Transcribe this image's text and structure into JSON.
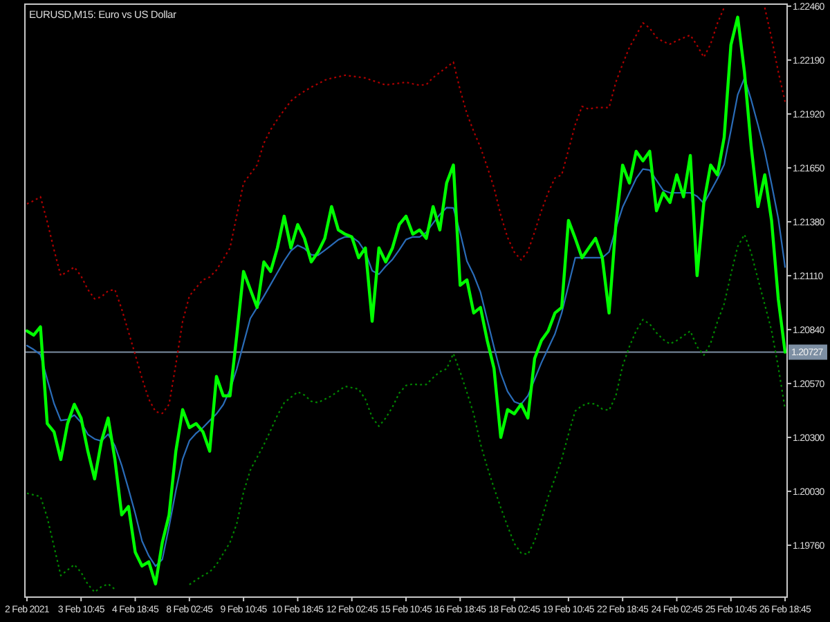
{
  "chart_data": {
    "type": "line",
    "title": "EURUSD,M15: Euro vs US Dollar",
    "categories": [
      "2 Feb 2021",
      null,
      null,
      null,
      null,
      null,
      null,
      null,
      "3 Feb 10:45",
      null,
      null,
      null,
      null,
      null,
      null,
      null,
      "4 Feb 18:45",
      null,
      null,
      null,
      null,
      null,
      null,
      null,
      "8 Feb 02:45",
      null,
      null,
      null,
      null,
      null,
      null,
      null,
      "9 Feb 10:45",
      null,
      null,
      null,
      null,
      null,
      null,
      null,
      "10 Feb 18:45",
      null,
      null,
      null,
      null,
      null,
      null,
      null,
      "12 Feb 02:45",
      null,
      null,
      null,
      null,
      null,
      null,
      null,
      "15 Feb 10:45",
      null,
      null,
      null,
      null,
      null,
      null,
      null,
      "16 Feb 18:45",
      null,
      null,
      null,
      null,
      null,
      null,
      null,
      "18 Feb 02:45",
      null,
      null,
      null,
      null,
      null,
      null,
      null,
      "19 Feb 10:45",
      null,
      null,
      null,
      null,
      null,
      null,
      null,
      "22 Feb 18:45",
      null,
      null,
      null,
      null,
      null,
      null,
      null,
      "24 Feb 02:45",
      null,
      null,
      null,
      null,
      null,
      null,
      null,
      "25 Feb 10:45",
      null,
      null,
      null,
      null,
      null,
      null,
      null,
      "26 Feb 18:45"
    ],
    "ylim": [
      1.195,
      1.2247
    ],
    "yticks": [
      {
        "value": 1.2246,
        "label": "1.22460"
      },
      {
        "value": 1.2219,
        "label": "1.22190"
      },
      {
        "value": 1.2192,
        "label": "1.21920"
      },
      {
        "value": 1.2165,
        "label": "1.21650"
      },
      {
        "value": 1.2138,
        "label": "1.21380"
      },
      {
        "value": 1.2111,
        "label": "1.21110"
      },
      {
        "value": 1.2084,
        "label": "1.20840"
      },
      {
        "value": 1.2057,
        "label": "1.20570"
      },
      {
        "value": 1.203,
        "label": "1.20300"
      },
      {
        "value": 1.2003,
        "label": "1.20030"
      },
      {
        "value": 1.1976,
        "label": "1.19760"
      }
    ],
    "grid": false,
    "marker": "none",
    "line_style": "solid",
    "series": [
      {
        "color": "#00ff00",
        "values": [
          1.20833,
          1.20812,
          1.20854,
          1.20369,
          1.20328,
          1.20189,
          1.20369,
          1.20466,
          1.20397,
          1.20231,
          1.20092,
          1.20279,
          1.20397,
          1.20189,
          1.19912,
          1.19954,
          1.19725,
          1.19656,
          1.19677,
          1.19566,
          1.19774,
          1.19912,
          1.20231,
          1.20439,
          1.20349,
          1.20369,
          1.20328,
          1.20231,
          1.20605,
          1.20508,
          1.20508,
          1.20812,
          1.21131,
          1.21041,
          1.20951,
          1.21179,
          1.21131,
          1.21249,
          1.21408,
          1.21249,
          1.21366,
          1.21297,
          1.21179,
          1.21228,
          1.21297,
          1.21456,
          1.21339,
          1.21318,
          1.21304,
          1.212,
          1.21249,
          1.20882,
          1.21249,
          1.21179,
          1.21249,
          1.21366,
          1.21408,
          1.21318,
          1.21339,
          1.21297,
          1.21456,
          1.21339,
          1.21574,
          1.21664,
          1.21062,
          1.21089,
          1.20923,
          1.20951,
          1.20785,
          1.20646,
          1.203,
          1.20439,
          1.20418,
          1.20466,
          1.20397,
          1.20695,
          1.20785,
          1.20833,
          1.20923,
          1.20951,
          1.21387,
          1.21297,
          1.212,
          1.21249,
          1.21297,
          1.212,
          1.20923,
          1.21366,
          1.21664,
          1.21574,
          1.21733,
          1.21685,
          1.21733,
          1.21435,
          1.21525,
          1.21477,
          1.21615,
          1.21505,
          1.21712,
          1.2111,
          1.21477,
          1.21664,
          1.21615,
          1.21802,
          1.22266,
          1.22405,
          1.22128,
          1.21754,
          1.21456,
          1.21615,
          1.21387,
          1.20992,
          1.20727
        ]
      },
      {
        "color": "#2a6cb8",
        "values": [
          1.2076,
          1.2074,
          1.20715,
          1.2059,
          1.2047,
          1.20385,
          1.2039,
          1.20412,
          1.20375,
          1.20315,
          1.20292,
          1.20282,
          1.20316,
          1.20258,
          1.2016,
          1.20042,
          1.19919,
          1.19781,
          1.19707,
          1.19655,
          1.19689,
          1.19854,
          1.20033,
          1.20191,
          1.20283,
          1.20321,
          1.20349,
          1.20384,
          1.20418,
          1.20464,
          1.20539,
          1.20643,
          1.2077,
          1.20896,
          1.20951,
          1.21007,
          1.21066,
          1.21125,
          1.21184,
          1.21235,
          1.21262,
          1.21246,
          1.21215,
          1.21212,
          1.21237,
          1.21263,
          1.2129,
          1.21304,
          1.21304,
          1.21279,
          1.21228,
          1.21135,
          1.21117,
          1.21157,
          1.21191,
          1.21239,
          1.21291,
          1.21304,
          1.21304,
          1.21327,
          1.21373,
          1.21417,
          1.21451,
          1.21449,
          1.21325,
          1.21183,
          1.21114,
          1.21027,
          1.20889,
          1.20752,
          1.20621,
          1.2053,
          1.20479,
          1.20466,
          1.20508,
          1.20591,
          1.20674,
          1.20746,
          1.20818,
          1.20923,
          1.21062,
          1.212,
          1.212,
          1.212,
          1.212,
          1.212,
          1.21229,
          1.21347,
          1.21453,
          1.21525,
          1.21597,
          1.21644,
          1.21639,
          1.21588,
          1.21538,
          1.21525,
          1.21525,
          1.21525,
          1.21525,
          1.21508,
          1.21472,
          1.21533,
          1.21595,
          1.21667,
          1.21838,
          1.22016,
          1.221,
          1.2199,
          1.21864,
          1.21732,
          1.21569,
          1.21396,
          1.21153
        ]
      },
      {
        "color": "#b00000",
        "line_style": "dotted",
        "values": [
          1.2147,
          1.21485,
          1.21505,
          1.2138,
          1.2124,
          1.2111,
          1.21131,
          1.21153,
          1.21108,
          1.21041,
          1.20994,
          1.21004,
          1.21034,
          1.2104,
          1.20943,
          1.20829,
          1.20714,
          1.20596,
          1.20492,
          1.20429,
          1.2042,
          1.20466,
          1.20665,
          1.20881,
          1.21008,
          1.2105,
          1.21089,
          1.21103,
          1.21138,
          1.21193,
          1.21249,
          1.21412,
          1.21574,
          1.21619,
          1.21664,
          1.21774,
          1.21841,
          1.21893,
          1.2194,
          1.21985,
          1.22012,
          1.22034,
          1.22054,
          1.22071,
          1.22089,
          1.22099,
          1.22106,
          1.22114,
          1.22109,
          1.22105,
          1.221,
          1.22088,
          1.22077,
          1.22065,
          1.2207,
          1.22074,
          1.22079,
          1.22071,
          1.22064,
          1.22067,
          1.22102,
          1.22128,
          1.22154,
          1.2218,
          1.2204,
          1.21921,
          1.21833,
          1.21753,
          1.21655,
          1.21551,
          1.21413,
          1.21302,
          1.21228,
          1.21189,
          1.21231,
          1.21329,
          1.21435,
          1.21526,
          1.21599,
          1.21615,
          1.21739,
          1.21866,
          1.21958,
          1.21944,
          1.21952,
          1.21952,
          1.21952,
          1.22079,
          1.2217,
          1.22253,
          1.22314,
          1.22376,
          1.2235,
          1.22303,
          1.22282,
          1.2227,
          1.22287,
          1.22301,
          1.22315,
          1.22263,
          1.22204,
          1.2227,
          1.22374,
          1.22453,
          null,
          null,
          null,
          null,
          null,
          1.22453,
          1.223,
          1.2213,
          1.21981
        ]
      },
      {
        "color": "#008a00",
        "line_style": "dotted",
        "values": [
          1.2002,
          1.20012,
          1.20004,
          1.19899,
          1.19754,
          1.19608,
          1.19636,
          1.19663,
          1.19624,
          1.19564,
          1.19525,
          1.19552,
          1.19566,
          1.19539,
          null,
          null,
          null,
          null,
          null,
          null,
          null,
          null,
          null,
          null,
          1.19563,
          1.19586,
          1.19608,
          1.19626,
          1.19663,
          1.19718,
          1.19774,
          1.19868,
          1.20026,
          1.20136,
          1.202,
          1.20263,
          1.20335,
          1.2041,
          1.20473,
          1.20501,
          1.20528,
          1.20512,
          1.20481,
          1.20474,
          1.20491,
          1.20508,
          1.20532,
          1.20556,
          1.20549,
          1.20542,
          1.20491,
          1.204,
          1.20356,
          1.20397,
          1.20452,
          1.20522,
          1.2056,
          1.20567,
          1.20564,
          1.20565,
          1.20599,
          1.20629,
          1.20643,
          1.2072,
          1.20628,
          1.20525,
          1.20418,
          1.20268,
          1.20151,
          1.20047,
          1.19948,
          1.19856,
          1.19768,
          1.19721,
          1.19714,
          1.19782,
          1.19887,
          1.20002,
          1.20095,
          1.20191,
          1.20316,
          1.20432,
          1.20459,
          1.20471,
          1.20467,
          1.20442,
          1.20436,
          1.20508,
          1.20658,
          1.20755,
          1.20834,
          1.2089,
          1.20868,
          1.20824,
          1.2079,
          1.20768,
          1.20785,
          1.20809,
          1.20833,
          1.20754,
          1.20712,
          1.20771,
          1.20879,
          1.20969,
          1.21117,
          1.21256,
          1.21316,
          1.21223,
          1.21092,
          1.20965,
          1.20836,
          1.20651,
          1.20442
        ]
      }
    ],
    "ref_lines": [
      {
        "axis": "y",
        "value": 1.20727,
        "label": "1.20727",
        "color": "#7d8fa3"
      }
    ]
  }
}
